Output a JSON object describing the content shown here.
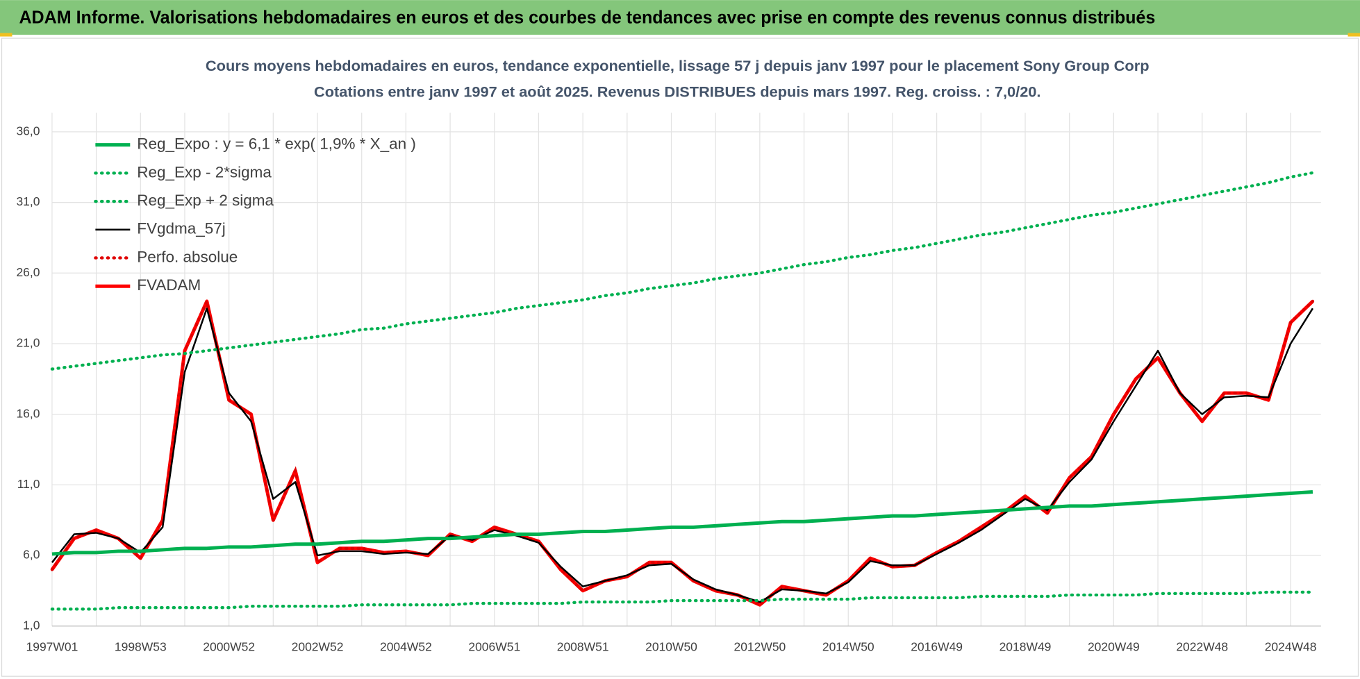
{
  "header": {
    "title": "ADAM Informe. Valorisations hebdomadaires en euros et des courbes de tendances avec prise en compte des revenus connus distribués"
  },
  "chart_data": {
    "type": "line",
    "title": "Cours moyens hebdomadaires en euros, tendance exponentielle, lissage 57 j depuis janv 1997 pour le placement Sony Group Corp",
    "subtitle": "Cotations entre janv 1997 et août 2025.  Revenus DISTRIBUES depuis mars 1997. Reg. croiss. : 7,0/20.",
    "categories": [
      "1997W01",
      null,
      null,
      null,
      "1998W53",
      null,
      null,
      null,
      "2000W52",
      null,
      null,
      null,
      "2002W52",
      null,
      null,
      null,
      "2004W52",
      null,
      null,
      null,
      "2006W51",
      null,
      null,
      null,
      "2008W51",
      null,
      null,
      null,
      "2010W50",
      null,
      null,
      null,
      "2012W50",
      null,
      null,
      null,
      "2014W50",
      null,
      null,
      null,
      "2016W49",
      null,
      null,
      null,
      "2018W49",
      null,
      null,
      null,
      "2020W49",
      null,
      null,
      null,
      "2022W48",
      null,
      null,
      null,
      "2024W48",
      null
    ],
    "ylim": [
      1,
      36
    ],
    "yticks": [
      {
        "value": 1,
        "label": "1,0"
      },
      {
        "value": 6,
        "label": "6,0"
      },
      {
        "value": 11,
        "label": "11,0"
      },
      {
        "value": 16,
        "label": "16,0"
      },
      {
        "value": 21,
        "label": "21,0"
      },
      {
        "value": 26,
        "label": "26,0"
      },
      {
        "value": 31,
        "label": "31,0"
      },
      {
        "value": 36,
        "label": "36,0"
      }
    ],
    "grid": true,
    "legend": "upper-left",
    "series": [
      {
        "name": "Reg_Expo : y = 6,1 * exp( 1,9% *  X_an )",
        "color": "#00b050",
        "line_style": "solid",
        "values": [
          6.1,
          6.2,
          6.2,
          6.3,
          6.3,
          6.4,
          6.5,
          6.5,
          6.6,
          6.6,
          6.7,
          6.8,
          6.8,
          6.9,
          7.0,
          7.0,
          7.1,
          7.2,
          7.2,
          7.3,
          7.4,
          7.5,
          7.5,
          7.6,
          7.7,
          7.7,
          7.8,
          7.9,
          8.0,
          8.0,
          8.1,
          8.2,
          8.3,
          8.4,
          8.4,
          8.5,
          8.6,
          8.7,
          8.8,
          8.8,
          8.9,
          9.0,
          9.1,
          9.2,
          9.3,
          9.4,
          9.5,
          9.5,
          9.6,
          9.7,
          9.8,
          9.9,
          10.0,
          10.1,
          10.2,
          10.3,
          10.4,
          10.5
        ]
      },
      {
        "name": "Reg_Exp - 2*sigma",
        "color": "#00b050",
        "line_style": "dotted",
        "values": [
          2.2,
          2.2,
          2.2,
          2.3,
          2.3,
          2.3,
          2.3,
          2.3,
          2.3,
          2.4,
          2.4,
          2.4,
          2.4,
          2.4,
          2.5,
          2.5,
          2.5,
          2.5,
          2.5,
          2.6,
          2.6,
          2.6,
          2.6,
          2.6,
          2.7,
          2.7,
          2.7,
          2.7,
          2.8,
          2.8,
          2.8,
          2.8,
          2.8,
          2.9,
          2.9,
          2.9,
          2.9,
          3.0,
          3.0,
          3.0,
          3.0,
          3.0,
          3.1,
          3.1,
          3.1,
          3.1,
          3.2,
          3.2,
          3.2,
          3.2,
          3.3,
          3.3,
          3.3,
          3.3,
          3.3,
          3.4,
          3.4,
          3.4
        ]
      },
      {
        "name": "Reg_Exp + 2 sigma",
        "color": "#00b050",
        "line_style": "dotted",
        "values": [
          19.2,
          19.4,
          19.6,
          19.8,
          20.0,
          20.2,
          20.3,
          20.5,
          20.7,
          20.9,
          21.1,
          21.3,
          21.5,
          21.7,
          22.0,
          22.1,
          22.4,
          22.6,
          22.8,
          23.0,
          23.2,
          23.5,
          23.7,
          23.9,
          24.1,
          24.4,
          24.6,
          24.9,
          25.1,
          25.3,
          25.6,
          25.8,
          26.0,
          26.3,
          26.6,
          26.8,
          27.1,
          27.3,
          27.6,
          27.8,
          28.1,
          28.4,
          28.7,
          28.9,
          29.2,
          29.5,
          29.8,
          30.1,
          30.3,
          30.6,
          30.9,
          31.2,
          31.5,
          31.8,
          32.1,
          32.4,
          32.8,
          33.1
        ]
      },
      {
        "name": "FVgdma_57j",
        "color": "#000000",
        "line_style": "solid",
        "values": [
          5.5,
          7.5,
          7.6,
          7.2,
          6.2,
          8.0,
          19.0,
          23.5,
          17.5,
          15.5,
          10.0,
          11.2,
          6.0,
          6.3,
          6.3,
          6.1,
          6.2,
          6.1,
          7.4,
          7.1,
          7.8,
          7.4,
          6.9,
          5.2,
          3.8,
          4.2,
          4.6,
          5.3,
          5.4,
          4.3,
          3.6,
          3.2,
          2.7,
          3.6,
          3.5,
          3.3,
          4.1,
          5.6,
          5.3,
          5.3,
          6.1,
          6.9,
          7.8,
          8.9,
          10.0,
          9.2,
          11.2,
          12.8,
          15.5,
          18.0,
          20.5,
          17.5,
          16.0,
          17.2,
          17.3,
          17.2,
          21.0,
          23.5
        ]
      },
      {
        "name": "Perfo. absolue",
        "color": "#e00000",
        "line_style": "dotted",
        "values": [
          5.0,
          7.2,
          7.8,
          7.2,
          5.8,
          8.5,
          20.5,
          24.0,
          17.0,
          16.0,
          8.5,
          12.0,
          5.5,
          6.5,
          6.5,
          6.2,
          6.3,
          6.0,
          7.5,
          7.0,
          8.0,
          7.5,
          7.0,
          5.0,
          3.5,
          4.2,
          4.5,
          5.5,
          5.5,
          4.2,
          3.5,
          3.2,
          2.5,
          3.8,
          3.5,
          3.2,
          4.2,
          5.8,
          5.2,
          5.3,
          6.2,
          7.0,
          8.0,
          9.0,
          10.2,
          9.0,
          11.5,
          13.0,
          16.0,
          18.5,
          20.0,
          17.5,
          15.5,
          17.5,
          17.5,
          17.0,
          22.5,
          24.0
        ]
      },
      {
        "name": "FVADAM",
        "color": "#ff0000",
        "line_style": "solid",
        "values": [
          5.0,
          7.2,
          7.8,
          7.2,
          5.8,
          8.5,
          20.5,
          24.0,
          17.0,
          16.0,
          8.5,
          12.0,
          5.5,
          6.5,
          6.5,
          6.2,
          6.3,
          6.0,
          7.5,
          7.0,
          8.0,
          7.5,
          7.0,
          5.0,
          3.5,
          4.2,
          4.5,
          5.5,
          5.5,
          4.2,
          3.5,
          3.2,
          2.5,
          3.8,
          3.5,
          3.2,
          4.2,
          5.8,
          5.2,
          5.3,
          6.2,
          7.0,
          8.0,
          9.0,
          10.2,
          9.0,
          11.5,
          13.0,
          16.0,
          18.5,
          20.0,
          17.5,
          15.5,
          17.5,
          17.5,
          17.0,
          22.5,
          24.0
        ]
      }
    ]
  }
}
